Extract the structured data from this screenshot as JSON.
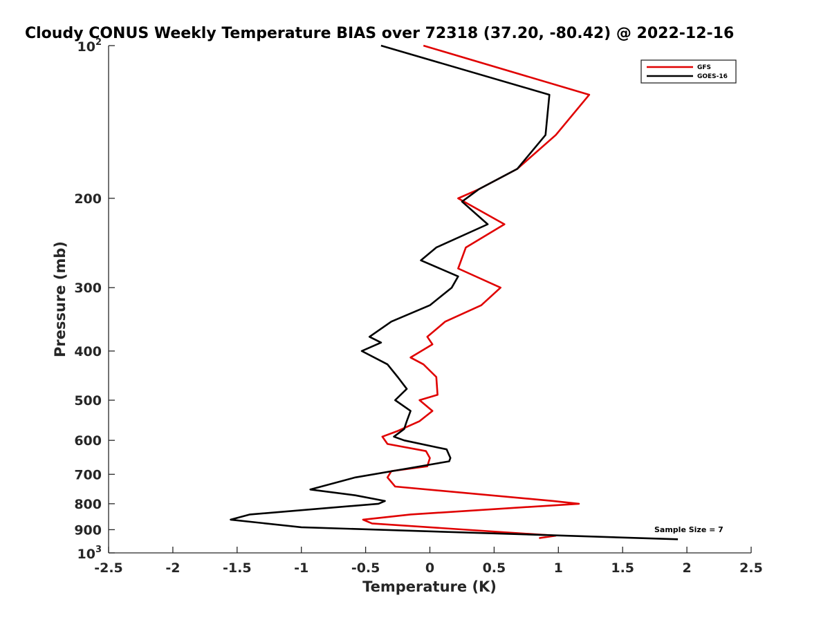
{
  "chart_data": {
    "type": "line",
    "title": "Cloudy CONUS Weekly Temperature BIAS over 72318 (37.20, -80.42) @ 2022-12-16",
    "xlabel": "Temperature (K)",
    "ylabel": "Pressure (mb)",
    "xlim": [
      -2.5,
      2.5
    ],
    "ylim": [
      100,
      1000
    ],
    "yscale": "log",
    "y_reversed": true,
    "x_ticks": [
      "-2.5",
      "-2",
      "-1.5",
      "-1",
      "-0.5",
      "0",
      "0.5",
      "1",
      "1.5",
      "2",
      "2.5"
    ],
    "y_ticks": [
      {
        "value": 100,
        "base": "10",
        "exp": "2"
      },
      {
        "value": 200,
        "label": "200"
      },
      {
        "value": 300,
        "label": "300"
      },
      {
        "value": 400,
        "label": "400"
      },
      {
        "value": 500,
        "label": "500"
      },
      {
        "value": 600,
        "label": "600"
      },
      {
        "value": 700,
        "label": "700"
      },
      {
        "value": 800,
        "label": "800"
      },
      {
        "value": 900,
        "label": "900"
      },
      {
        "value": 1000,
        "base": "10",
        "exp": "3"
      }
    ],
    "grid": false,
    "legend_position": "top-right",
    "annotation": "Sample Size = 7",
    "series": [
      {
        "name": "GFS",
        "color": "#e00000",
        "points": [
          [
            -0.05,
            100
          ],
          [
            1.24,
            125
          ],
          [
            0.98,
            150
          ],
          [
            0.68,
            175
          ],
          [
            0.38,
            192
          ],
          [
            0.22,
            200
          ],
          [
            0.58,
            225
          ],
          [
            0.28,
            250
          ],
          [
            0.22,
            275
          ],
          [
            0.55,
            300
          ],
          [
            0.4,
            325
          ],
          [
            0.12,
            350
          ],
          [
            -0.02,
            375
          ],
          [
            0.02,
            388
          ],
          [
            -0.15,
            412
          ],
          [
            -0.05,
            425
          ],
          [
            0.05,
            450
          ],
          [
            0.06,
            488
          ],
          [
            -0.08,
            500
          ],
          [
            0.02,
            525
          ],
          [
            -0.08,
            550
          ],
          [
            -0.25,
            575
          ],
          [
            -0.37,
            590
          ],
          [
            -0.33,
            610
          ],
          [
            -0.03,
            630
          ],
          [
            0.0,
            650
          ],
          [
            -0.02,
            675
          ],
          [
            -0.3,
            690
          ],
          [
            -0.33,
            710
          ],
          [
            -0.27,
            740
          ],
          [
            0.96,
            790
          ],
          [
            1.16,
            800
          ],
          [
            -0.15,
            840
          ],
          [
            -0.52,
            860
          ],
          [
            -0.45,
            875
          ],
          [
            0.98,
            925
          ],
          [
            0.85,
            935
          ]
        ]
      },
      {
        "name": "GOES-16",
        "color": "#000000",
        "points": [
          [
            -0.38,
            100
          ],
          [
            0.93,
            125
          ],
          [
            0.9,
            150
          ],
          [
            0.68,
            175
          ],
          [
            0.38,
            192
          ],
          [
            0.25,
            203
          ],
          [
            0.45,
            225
          ],
          [
            0.05,
            250
          ],
          [
            -0.07,
            265
          ],
          [
            0.22,
            285
          ],
          [
            0.17,
            300
          ],
          [
            0.0,
            325
          ],
          [
            -0.3,
            350
          ],
          [
            -0.47,
            375
          ],
          [
            -0.38,
            385
          ],
          [
            -0.53,
            400
          ],
          [
            -0.33,
            425
          ],
          [
            -0.25,
            450
          ],
          [
            -0.18,
            475
          ],
          [
            -0.27,
            500
          ],
          [
            -0.15,
            525
          ],
          [
            -0.18,
            550
          ],
          [
            -0.2,
            570
          ],
          [
            -0.28,
            590
          ],
          [
            -0.2,
            600
          ],
          [
            0.13,
            625
          ],
          [
            0.16,
            650
          ],
          [
            0.15,
            660
          ],
          [
            -0.15,
            680
          ],
          [
            -0.58,
            710
          ],
          [
            -0.93,
            750
          ],
          [
            -0.58,
            770
          ],
          [
            -0.35,
            790
          ],
          [
            -0.4,
            800
          ],
          [
            -1.4,
            840
          ],
          [
            -1.55,
            860
          ],
          [
            -1.0,
            890
          ],
          [
            1.93,
            940
          ]
        ]
      }
    ]
  }
}
